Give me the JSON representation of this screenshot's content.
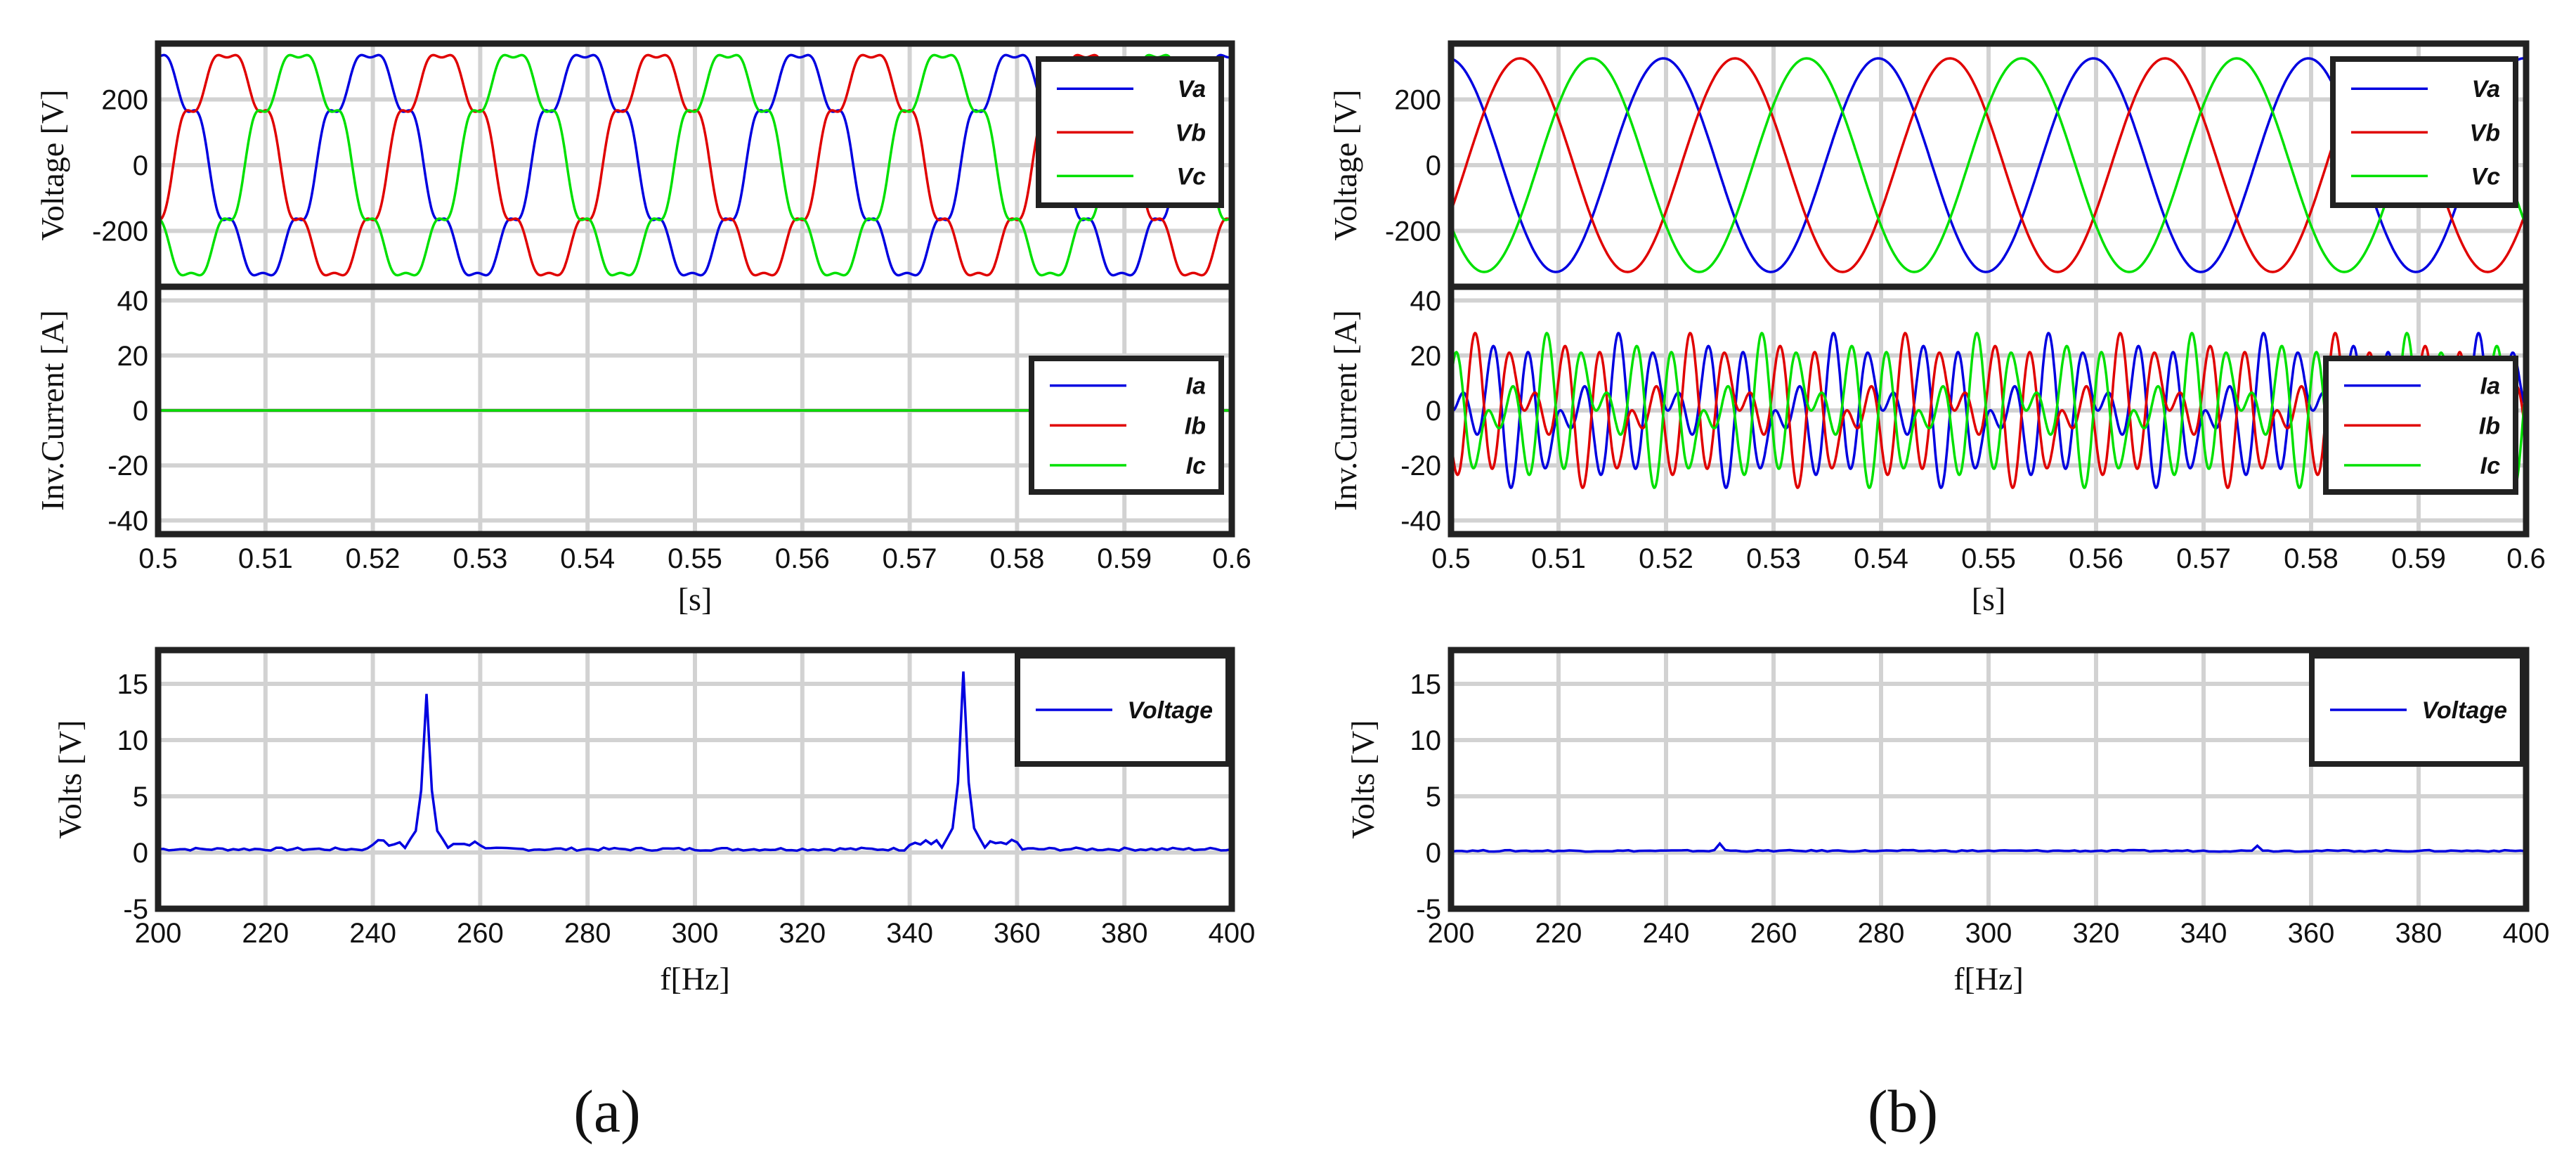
{
  "colors": {
    "phase_a": "#0000e0",
    "phase_b": "#e00000",
    "phase_c": "#00e000",
    "grid": "#d2d2d2",
    "frame": "#222222"
  },
  "panels": [
    {
      "caption": "(a)",
      "voltage_plot": {
        "ylabel": "Voltage [V]",
        "ylim": [
          -370,
          370
        ],
        "yticks": [
          200,
          0,
          -200
        ],
        "xlim": [
          0.5,
          0.6
        ],
        "legend": [
          "Va",
          "Vb",
          "Vc"
        ],
        "amplitude": 330,
        "distortion": [
          {
            "harmonic": 5,
            "amp": 30
          },
          {
            "harmonic": 7,
            "amp": 32
          }
        ]
      },
      "current_plot": {
        "ylabel": "Inv.Current [A]",
        "ylim": [
          -45,
          45
        ],
        "yticks": [
          40,
          20,
          0,
          -20,
          -40
        ],
        "xlim": [
          0.5,
          0.6
        ],
        "xticks": [
          "0.5",
          "0.51",
          "0.52",
          "0.53",
          "0.54",
          "0.55",
          "0.56",
          "0.57",
          "0.58",
          "0.59",
          "0.6"
        ],
        "xlabel": "[s]",
        "legend": [
          "Ia",
          "Ib",
          "Ic"
        ],
        "amplitude": 0,
        "harmonics": []
      },
      "spectrum_plot": {
        "ylabel": "Volts [V]",
        "xlabel": "f[Hz]",
        "ylim": [
          -5,
          18
        ],
        "yticks": [
          15,
          10,
          5,
          0,
          -5
        ],
        "xlim": [
          200,
          400
        ],
        "xticks": [
          "200",
          "220",
          "240",
          "260",
          "280",
          "300",
          "320",
          "340",
          "360",
          "380",
          "400"
        ],
        "legend": [
          "Voltage"
        ],
        "peaks": [
          {
            "f": 250,
            "v": 14.1
          },
          {
            "f": 350,
            "v": 16.1
          }
        ],
        "floor": 0.3
      }
    },
    {
      "caption": "(b)",
      "voltage_plot": {
        "ylabel": "Voltage [V]",
        "ylim": [
          -370,
          370
        ],
        "yticks": [
          200,
          0,
          -200
        ],
        "xlim": [
          0.5,
          0.6
        ],
        "legend": [
          "Va",
          "Vb",
          "Vc"
        ],
        "amplitude": 325,
        "distortion": []
      },
      "current_plot": {
        "ylabel": "Inv.Current [A]",
        "ylim": [
          -45,
          45
        ],
        "yticks": [
          40,
          20,
          0,
          -20,
          -40
        ],
        "xlim": [
          0.5,
          0.6
        ],
        "xticks": [
          "0.5",
          "0.51",
          "0.52",
          "0.53",
          "0.54",
          "0.55",
          "0.56",
          "0.57",
          "0.58",
          "0.59",
          "0.6"
        ],
        "xlabel": "[s]",
        "legend": [
          "Ia",
          "Ib",
          "Ic"
        ],
        "amplitude": 5,
        "harmonics": [
          {
            "harmonic": 5,
            "amp": 13
          },
          {
            "harmonic": 7,
            "amp": 14
          }
        ]
      },
      "spectrum_plot": {
        "ylabel": "Volts [V]",
        "xlabel": "f[Hz]",
        "ylim": [
          -5,
          18
        ],
        "yticks": [
          15,
          10,
          5,
          0,
          -5
        ],
        "xlim": [
          200,
          400
        ],
        "xticks": [
          "200",
          "220",
          "240",
          "260",
          "280",
          "300",
          "320",
          "340",
          "360",
          "380",
          "400"
        ],
        "legend": [
          "Voltage"
        ],
        "peaks": [
          {
            "f": 250,
            "v": 0.8
          },
          {
            "f": 350,
            "v": 0.6
          }
        ],
        "floor": 0.15
      }
    }
  ],
  "chart_data": [
    {
      "type": "line",
      "panel": "(a) top",
      "title": "",
      "xlabel": "",
      "ylabel": "Voltage [V]",
      "xlim": [
        0.5,
        0.6
      ],
      "ylim": [
        -370,
        370
      ],
      "series": [
        {
          "name": "Va",
          "model": "330*sin(2*pi*50*t + 1.65) + 5th/7th harmonic distortion"
        },
        {
          "name": "Vb",
          "model": "phase shifted -120 deg"
        },
        {
          "name": "Vc",
          "model": "phase shifted +120 deg"
        }
      ]
    },
    {
      "type": "line",
      "panel": "(a) middle",
      "title": "",
      "xlabel": "[s]",
      "ylabel": "Inv.Current [A]",
      "xlim": [
        0.5,
        0.6
      ],
      "ylim": [
        -45,
        45
      ],
      "series": [
        {
          "name": "Ia",
          "values": "0 throughout"
        },
        {
          "name": "Ib",
          "values": "0 throughout"
        },
        {
          "name": "Ic",
          "values": "0 throughout"
        }
      ]
    },
    {
      "type": "line",
      "panel": "(a) bottom",
      "title": "",
      "xlabel": "f[Hz]",
      "ylabel": "Volts [V]",
      "xlim": [
        200,
        400
      ],
      "ylim": [
        -5,
        18
      ],
      "series": [
        {
          "name": "Voltage",
          "peaks": [
            {
              "f": 250,
              "v": 14.1
            },
            {
              "f": 350,
              "v": 16.1
            }
          ],
          "baseline": 0.3
        }
      ]
    },
    {
      "type": "line",
      "panel": "(b) top",
      "title": "",
      "xlabel": "",
      "ylabel": "Voltage [V]",
      "xlim": [
        0.5,
        0.6
      ],
      "ylim": [
        -370,
        370
      ],
      "series": [
        {
          "name": "Va",
          "model": "325*sin(2*pi*50*t + 1.65)"
        },
        {
          "name": "Vb",
          "model": "phase shifted -120 deg"
        },
        {
          "name": "Vc",
          "model": "phase shifted +120 deg"
        }
      ]
    },
    {
      "type": "line",
      "panel": "(b) middle",
      "title": "",
      "xlabel": "[s]",
      "ylabel": "Inv.Current [A]",
      "xlim": [
        0.5,
        0.6
      ],
      "ylim": [
        -45,
        45
      ],
      "series": [
        {
          "name": "Ia",
          "model": "fundamental ~5 A + 5th (~13 A) + 7th (~14 A) harmonics, peak ~30 A"
        },
        {
          "name": "Ib",
          "model": "phase shifted -120 deg"
        },
        {
          "name": "Ic",
          "model": "phase shifted +120 deg"
        }
      ]
    },
    {
      "type": "line",
      "panel": "(b) bottom",
      "title": "",
      "xlabel": "f[Hz]",
      "ylabel": "Volts [V]",
      "xlim": [
        200,
        400
      ],
      "ylim": [
        -5,
        18
      ],
      "series": [
        {
          "name": "Voltage",
          "peaks": [
            {
              "f": 250,
              "v": 0.8
            },
            {
              "f": 350,
              "v": 0.6
            }
          ],
          "baseline": 0.15
        }
      ]
    }
  ]
}
